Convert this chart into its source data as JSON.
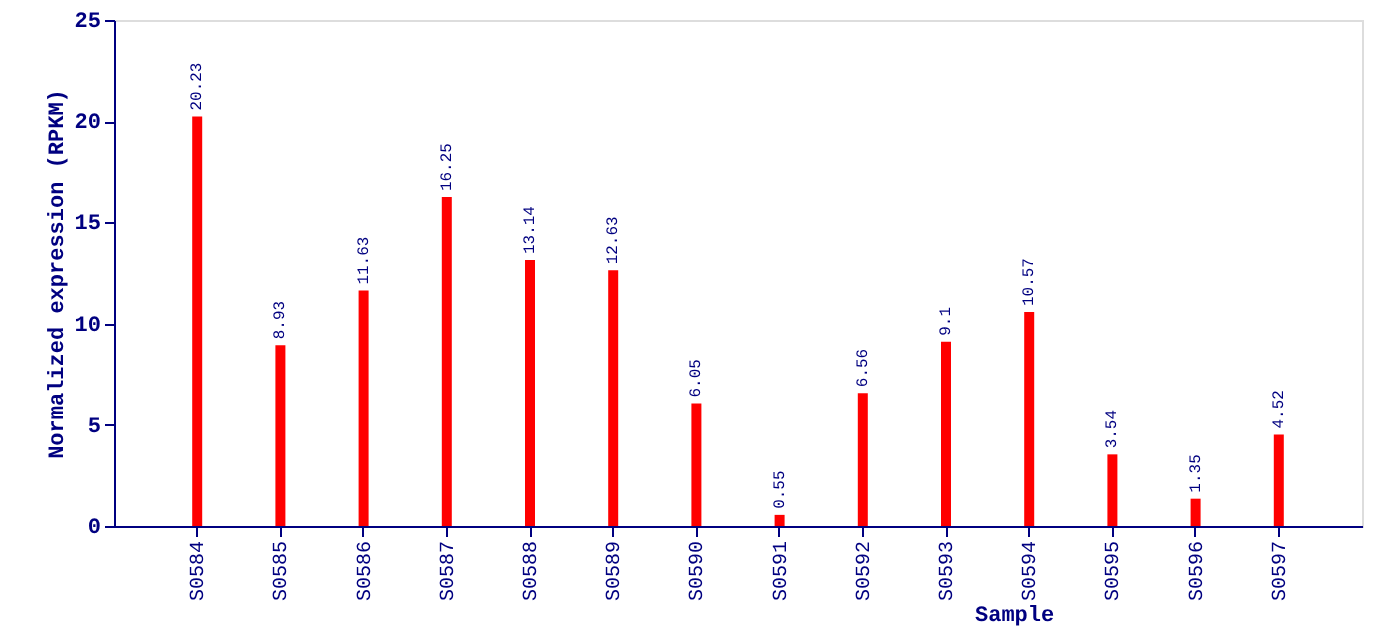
{
  "chart_data": {
    "type": "bar",
    "xlabel": "Sample",
    "ylabel": "Normalized expression (RPKM)",
    "categories": [
      "S0584",
      "S0585",
      "S0586",
      "S0587",
      "S0588",
      "S0589",
      "S0590",
      "S0591",
      "S0592",
      "S0593",
      "S0594",
      "S0595",
      "S0596",
      "S0597"
    ],
    "values": [
      20.23,
      8.93,
      11.63,
      16.25,
      13.14,
      12.63,
      6.05,
      0.55,
      6.56,
      9.1,
      10.57,
      3.54,
      1.35,
      4.52
    ],
    "color": "#ff0000",
    "ylim": [
      0,
      25
    ],
    "yticks": [
      0,
      5,
      10,
      15,
      20,
      25
    ],
    "data_labels": true,
    "grid": false
  }
}
